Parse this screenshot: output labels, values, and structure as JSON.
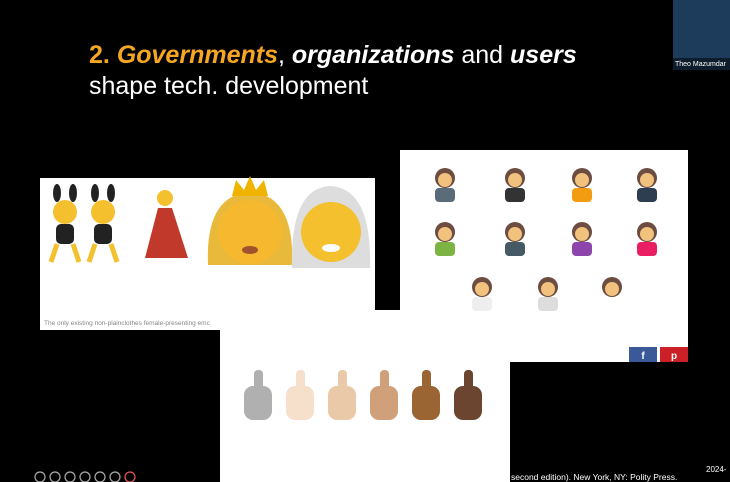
{
  "slide": {
    "title": {
      "number": "2.",
      "governments": "Governments",
      "comma": ",",
      "organizations": "organizations",
      "and": "and",
      "users": "users",
      "line2": "shape tech. development"
    },
    "caption": "The only existing non-plainclothes female-presenting emc",
    "fragment": "n",
    "citation": "second edition). New York, NY: Polity Press.",
    "date": "2024-"
  },
  "video": {
    "name": "Theo Mazumdar"
  },
  "share": {
    "facebook": "f",
    "pinterest": "p"
  }
}
